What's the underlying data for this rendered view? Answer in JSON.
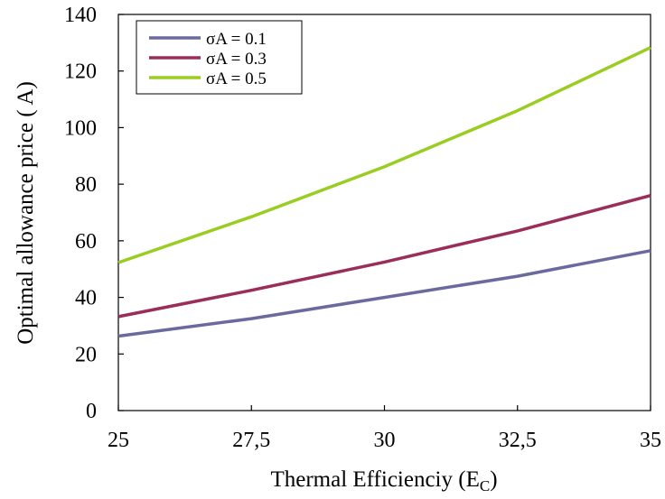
{
  "chart_data": {
    "type": "line",
    "title": "",
    "xlabel": "Thermal Efficienciy (E",
    "xlabel_subscript": "C",
    "xlabel_suffix": ")",
    "ylabel": "Optimal  allowance price ( A)",
    "x": [
      25,
      27.5,
      30,
      32.5,
      35
    ],
    "xlim": [
      25,
      35
    ],
    "ylim": [
      0,
      140
    ],
    "x_ticks": [
      "25",
      "27,5",
      "30",
      "32,5",
      "35"
    ],
    "y_ticks": [
      "0",
      "20",
      "40",
      "60",
      "80",
      "100",
      "120",
      "140"
    ],
    "grid": false,
    "legend_position": "top-left",
    "series": [
      {
        "name": "σA =  0.1",
        "color": "#6A6A9E",
        "values": [
          26.3,
          32.5,
          40.0,
          47.5,
          56.5
        ]
      },
      {
        "name": "σA =  0.3",
        "color": "#9B2D5B",
        "values": [
          33.2,
          42.5,
          52.5,
          63.5,
          76.0
        ]
      },
      {
        "name": "σA =  0.5",
        "color": "#9ACD22",
        "values": [
          52.3,
          68.5,
          86.2,
          106.0,
          128.3
        ]
      }
    ]
  }
}
